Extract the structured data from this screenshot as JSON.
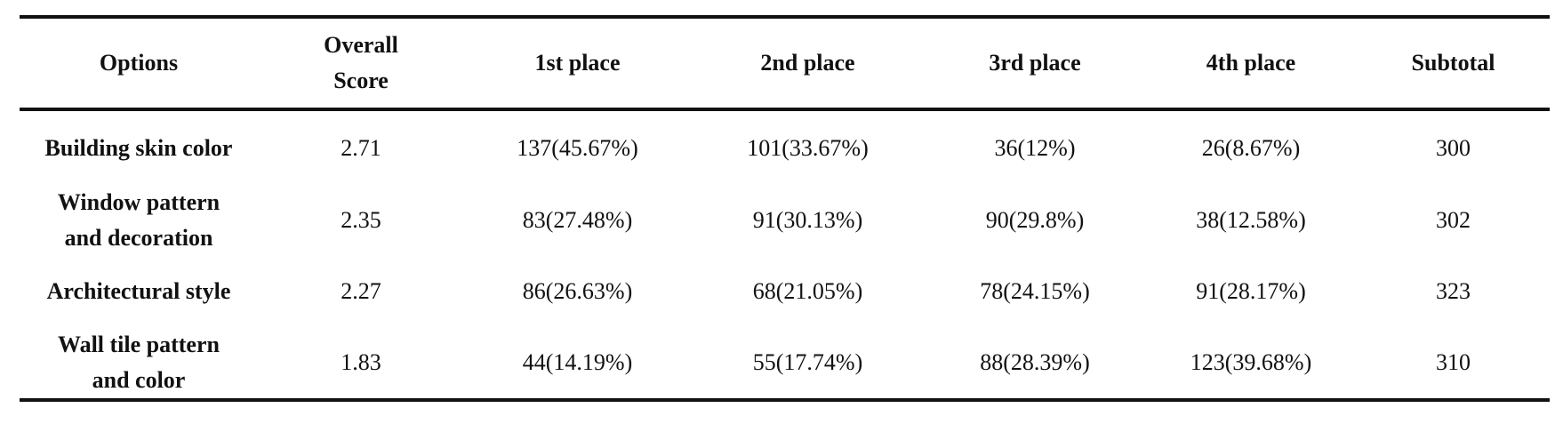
{
  "table": {
    "header": [
      "Options",
      [
        "Overall",
        "Score"
      ],
      "1st place",
      "2nd place",
      "3rd place",
      "4th place",
      "Subtotal"
    ],
    "rows": [
      [
        "Building skin color",
        "2.71",
        "137(45.67%)",
        "101(33.67%)",
        "36(12%)",
        "26(8.67%)",
        "300"
      ],
      [
        [
          "Window pattern",
          "and decoration"
        ],
        "2.35",
        "83(27.48%)",
        "91(30.13%)",
        "90(29.8%)",
        "38(12.58%)",
        "302"
      ],
      [
        "Architectural style",
        "2.27",
        "86(26.63%)",
        "68(21.05%)",
        "78(24.15%)",
        "91(28.17%)",
        "323"
      ],
      [
        [
          "Wall tile pattern",
          "and color"
        ],
        "1.83",
        "44(14.19%)",
        "55(17.74%)",
        "88(28.39%)",
        "123(39.68%)",
        "310"
      ]
    ]
  }
}
